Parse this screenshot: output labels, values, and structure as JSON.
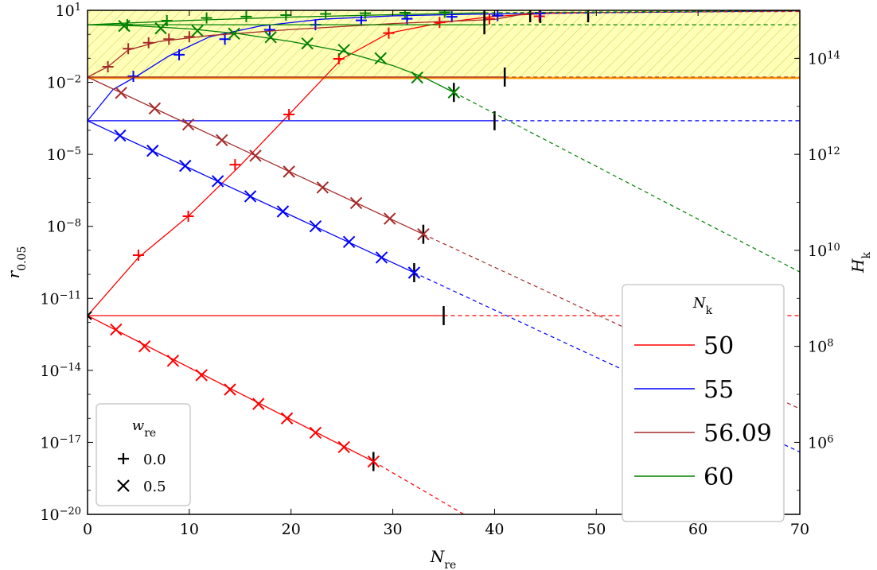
{
  "chart_data": {
    "type": "line",
    "xlabel": {
      "main": "N",
      "sub": "re"
    },
    "ylabel_left": {
      "main": "r",
      "sub": "0.05"
    },
    "ylabel_right": {
      "main": "H",
      "sub": "k"
    },
    "xlim": [
      0,
      70
    ],
    "ylim_log10": [
      -20,
      1
    ],
    "x_ticks": [
      "0",
      "10",
      "20",
      "30",
      "40",
      "50",
      "60",
      "70"
    ],
    "y_ticks_left": [
      {
        "base": "10",
        "exp": "1",
        "log10": 1
      },
      {
        "base": "10",
        "exp": "−2",
        "log10": -2
      },
      {
        "base": "10",
        "exp": "−5",
        "log10": -5
      },
      {
        "base": "10",
        "exp": "−8",
        "log10": -8
      },
      {
        "base": "10",
        "exp": "−11",
        "log10": -11
      },
      {
        "base": "10",
        "exp": "−14",
        "log10": -14
      },
      {
        "base": "10",
        "exp": "−17",
        "log10": -17
      },
      {
        "base": "10",
        "exp": "−20",
        "log10": -20
      }
    ],
    "y_ticks_right": [
      {
        "base": "10",
        "exp": "14",
        "log10_r": -1
      },
      {
        "base": "10",
        "exp": "12",
        "log10_r": -5
      },
      {
        "base": "10",
        "exp": "10",
        "log10_r": -9
      },
      {
        "base": "10",
        "exp": "8",
        "log10_r": -13
      },
      {
        "base": "10",
        "exp": "6",
        "log10_r": -17
      }
    ],
    "shaded_band_log10": [
      -1.82,
      1
    ],
    "band_color": "#ffff99",
    "series_legend": {
      "title": {
        "main": "N",
        "sub": "k"
      },
      "entries": [
        {
          "label": "50",
          "color": "#ff0000"
        },
        {
          "label": "55",
          "color": "#0000ff"
        },
        {
          "label": "56.09",
          "color": "#a52a2a"
        },
        {
          "label": "60",
          "color": "#008000"
        }
      ]
    },
    "marker_legend": {
      "title": {
        "main": "w",
        "sub": "re"
      },
      "entries": [
        {
          "symbol": "+",
          "label": "0.0"
        },
        {
          "symbol": "×",
          "label": "0.5"
        }
      ]
    },
    "series": [
      {
        "color": "#ff0000",
        "w_re": "0.0",
        "curve": [
          [
            0,
            -11.72
          ],
          [
            5,
            -9.3
          ],
          [
            9.9,
            -7.58
          ],
          [
            15,
            -5.47
          ],
          [
            19.8,
            -3.34
          ],
          [
            25,
            -1.02
          ],
          [
            29.6,
            0.05
          ],
          [
            35,
            0.5
          ],
          [
            40,
            0.75
          ],
          [
            45,
            0.87
          ],
          [
            49.2,
            0.9
          ]
        ],
        "markers": [
          [
            5,
            -9.2
          ],
          [
            9.9,
            -7.58
          ],
          [
            14.5,
            -5.43
          ],
          [
            19.8,
            -3.34
          ],
          [
            24.7,
            -1.02
          ],
          [
            29.6,
            0.05
          ],
          [
            34.6,
            0.5
          ],
          [
            39.5,
            0.64
          ],
          [
            44.4,
            0.75
          ]
        ],
        "end_x": 49.2,
        "dash_to": [
          [
            49.2,
            0.9
          ],
          [
            70,
            0.97
          ]
        ]
      },
      {
        "color": "#ff0000",
        "w_re": "0.0",
        "kind": "flat",
        "y": -11.72,
        "end_x": 35,
        "dash_to": [
          [
            35,
            -11.72
          ],
          [
            70,
            -11.72
          ]
        ]
      },
      {
        "color": "#ff0000",
        "w_re": "0.5",
        "curve": [
          [
            0,
            -11.72
          ],
          [
            28.1,
            -17.8
          ]
        ],
        "markers": [
          [
            2.8,
            -12.3
          ],
          [
            5.6,
            -13.0
          ],
          [
            8.4,
            -13.6
          ],
          [
            11.2,
            -14.2
          ],
          [
            14,
            -14.8
          ],
          [
            16.8,
            -15.4
          ],
          [
            19.6,
            -16.0
          ],
          [
            22.4,
            -16.6
          ],
          [
            25.2,
            -17.2
          ],
          [
            28.1,
            -17.8
          ]
        ],
        "end_x": 28.1,
        "dash_to": [
          [
            28.1,
            -17.8
          ],
          [
            37,
            -20
          ]
        ]
      },
      {
        "color": "#0000ff",
        "w_re": "0.0",
        "curve": [
          [
            0,
            -3.6
          ],
          [
            2.5,
            -2.3
          ],
          [
            5,
            -1.7
          ],
          [
            8,
            -0.9
          ],
          [
            12,
            -0.1
          ],
          [
            17,
            0.35
          ],
          [
            23,
            0.63
          ],
          [
            30,
            0.77
          ],
          [
            38,
            0.84
          ],
          [
            44.5,
            0.87
          ]
        ],
        "markers": [
          [
            4.5,
            -1.75
          ],
          [
            9,
            -0.85
          ],
          [
            13.5,
            -0.2
          ],
          [
            17.9,
            0.19
          ],
          [
            22.4,
            0.4
          ],
          [
            26.9,
            0.58
          ],
          [
            31.4,
            0.65
          ],
          [
            35.8,
            0.73
          ],
          [
            40.3,
            0.78
          ],
          [
            44.5,
            0.87
          ]
        ],
        "end_x": 44.5,
        "dash_to": [
          [
            44.5,
            0.87
          ],
          [
            70,
            0.98
          ]
        ]
      },
      {
        "color": "#0000ff",
        "w_re": "0.0",
        "kind": "flat",
        "y": -3.6,
        "end_x": 40,
        "dash_to": [
          [
            40,
            -3.6
          ],
          [
            70,
            -3.6
          ]
        ]
      },
      {
        "color": "#0000ff",
        "w_re": "0.5",
        "curve": [
          [
            0,
            -3.6
          ],
          [
            32.1,
            -9.93
          ]
        ],
        "markers": [
          [
            3.2,
            -4.22
          ],
          [
            6.4,
            -4.85
          ],
          [
            9.6,
            -5.48
          ],
          [
            12.8,
            -6.12
          ],
          [
            16,
            -6.75
          ],
          [
            19.2,
            -7.38
          ],
          [
            22.4,
            -8.0
          ],
          [
            25.7,
            -8.65
          ],
          [
            28.9,
            -9.3
          ],
          [
            32.1,
            -9.93
          ]
        ],
        "end_x": 32.1,
        "dash_to": [
          [
            32.1,
            -9.93
          ],
          [
            70,
            -17.4
          ]
        ]
      },
      {
        "color": "#a52a2a",
        "w_re": "0.0",
        "curve": [
          [
            0,
            -1.78
          ],
          [
            2,
            -1.35
          ],
          [
            4,
            -0.65
          ],
          [
            7,
            -0.3
          ],
          [
            12,
            -0.05
          ],
          [
            20,
            0.2
          ],
          [
            30,
            0.45
          ],
          [
            40,
            0.62
          ],
          [
            43.5,
            0.9
          ]
        ],
        "markers": [
          [
            2,
            -1.35
          ],
          [
            4,
            -0.6
          ],
          [
            6,
            -0.35
          ],
          [
            8,
            -0.2
          ],
          [
            10,
            -0.1
          ]
        ],
        "end_x": 43.5,
        "dash_to": [
          [
            43.5,
            0.9
          ],
          [
            70,
            0.95
          ]
        ]
      },
      {
        "color": "#a52a2a",
        "w_re": "0.0",
        "kind": "flat",
        "y": -1.78,
        "end_x": 41,
        "dash_to": [
          [
            41,
            -1.78
          ],
          [
            70,
            -1.78
          ]
        ]
      },
      {
        "color": "#a52a2a",
        "w_re": "0.5",
        "curve": [
          [
            0,
            -1.78
          ],
          [
            33,
            -8.33
          ]
        ],
        "markers": [
          [
            3.3,
            -2.44
          ],
          [
            6.6,
            -3.09
          ],
          [
            9.9,
            -3.76
          ],
          [
            13.2,
            -4.41
          ],
          [
            16.5,
            -5.06
          ],
          [
            19.8,
            -5.72
          ],
          [
            23.1,
            -6.38
          ],
          [
            26.4,
            -7.03
          ],
          [
            29.7,
            -7.68
          ],
          [
            33,
            -8.33
          ]
        ],
        "end_x": 33,
        "dash_to": [
          [
            33,
            -8.33
          ],
          [
            70,
            -15.6
          ]
        ]
      },
      {
        "color": "#008000",
        "w_re": "0.0",
        "curve": [
          [
            0,
            0.4
          ],
          [
            10,
            0.58
          ],
          [
            20,
            0.72
          ],
          [
            30,
            0.82
          ],
          [
            39,
            0.9
          ]
        ],
        "markers": [
          [
            3.9,
            0.4
          ],
          [
            7.8,
            0.57
          ],
          [
            11.7,
            0.68
          ],
          [
            15.6,
            0.74
          ],
          [
            19.5,
            0.8
          ],
          [
            23.4,
            0.85
          ],
          [
            27.3,
            0.88
          ],
          [
            31.2,
            0.9
          ],
          [
            35.1,
            0.92
          ]
        ],
        "end_x": 39,
        "dash_to": [
          [
            39,
            0.9
          ],
          [
            70,
            0.99
          ]
        ]
      },
      {
        "color": "#008000",
        "w_re": "0.0",
        "kind": "flat",
        "y": 0.4,
        "end_x": 39,
        "dash_to": [
          [
            39,
            0.4
          ],
          [
            70,
            0.4
          ]
        ]
      },
      {
        "color": "#008000",
        "w_re": "0.5",
        "curve": [
          [
            0,
            0.4
          ],
          [
            5,
            0.35
          ],
          [
            10,
            0.23
          ],
          [
            15,
            0.02
          ],
          [
            20,
            -0.3
          ],
          [
            25,
            -0.7
          ],
          [
            30,
            -1.3
          ],
          [
            33,
            -1.78
          ],
          [
            36,
            -2.42
          ]
        ],
        "markers": [
          [
            3.6,
            0.35
          ],
          [
            7.2,
            0.25
          ],
          [
            10.8,
            0.15
          ],
          [
            14.4,
            0.03
          ],
          [
            18,
            -0.12
          ],
          [
            21.6,
            -0.38
          ],
          [
            25.2,
            -0.65
          ],
          [
            28.8,
            -1.0
          ],
          [
            32.4,
            -1.8
          ],
          [
            36,
            -2.42
          ]
        ],
        "end_x": 36,
        "dash_to": [
          [
            36,
            -2.42
          ],
          [
            70,
            -9.9
          ]
        ]
      }
    ]
  }
}
